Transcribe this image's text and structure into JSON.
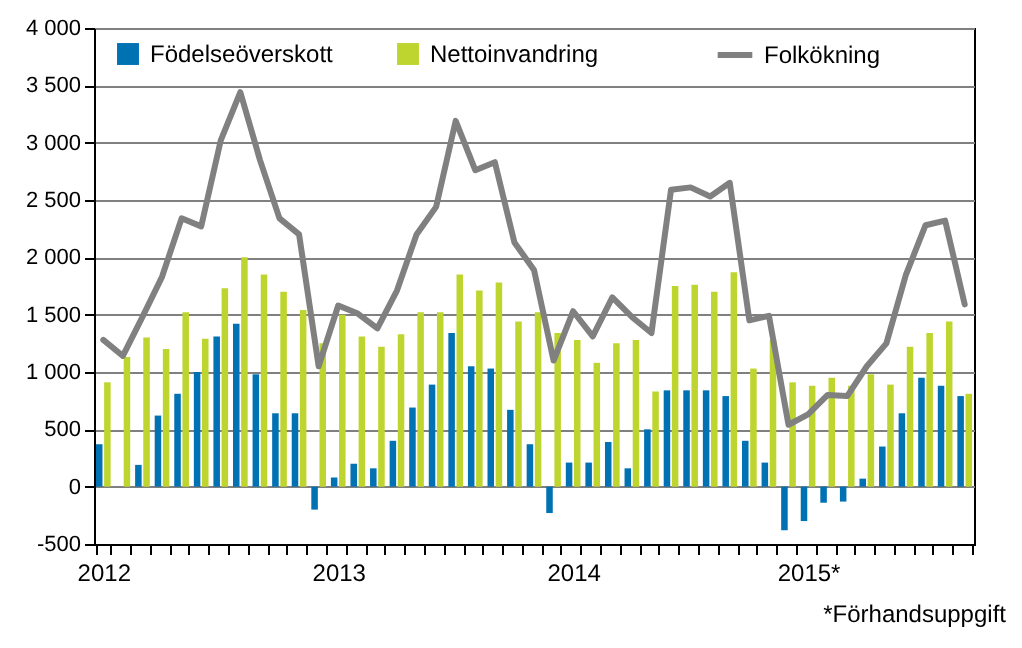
{
  "chart_data": {
    "type": "bar",
    "categories": [
      "2012",
      null,
      null,
      null,
      null,
      null,
      null,
      null,
      null,
      null,
      null,
      null,
      "2013",
      null,
      null,
      null,
      null,
      null,
      null,
      null,
      null,
      null,
      null,
      null,
      "2014",
      null,
      null,
      null,
      null,
      null,
      null,
      null,
      null,
      null,
      null,
      null,
      "2015*",
      null,
      null,
      null,
      null,
      null,
      null,
      null,
      null
    ],
    "series": [
      {
        "name": "Födelseöverskott",
        "color": "#0071b3",
        "values": [
          370,
          0,
          190,
          620,
          810,
          1000,
          1310,
          1420,
          980,
          640,
          640,
          -200,
          80,
          200,
          160,
          400,
          690,
          890,
          1340,
          1050,
          1030,
          670,
          370,
          -230,
          210,
          210,
          390,
          160,
          500,
          840,
          840,
          840,
          790,
          400,
          210,
          -380,
          -300,
          -140,
          -130,
          70,
          350,
          640,
          950,
          880,
          790
        ]
      },
      {
        "name": "Nettoinvandring",
        "color": "#bfd52f",
        "values": [
          910,
          1130,
          1300,
          1200,
          1520,
          1290,
          1730,
          2000,
          1850,
          1700,
          1540,
          1250,
          1500,
          1310,
          1220,
          1330,
          1520,
          1520,
          1850,
          1710,
          1780,
          1440,
          1520,
          1340,
          1280,
          1080,
          1250,
          1280,
          830,
          1750,
          1760,
          1700,
          1870,
          1030,
          1280,
          910,
          880,
          950,
          880,
          980,
          890,
          1220,
          1340,
          1440,
          810
        ]
      },
      {
        "name": "Folkökning",
        "type": "line",
        "color": "#808080",
        "values": [
          1280,
          1140,
          1480,
          1830,
          2340,
          2270,
          3020,
          3440,
          2850,
          2340,
          2200,
          1050,
          1580,
          1510,
          1380,
          1710,
          2200,
          2440,
          3190,
          2760,
          2830,
          2130,
          1890,
          1100,
          1530,
          1310,
          1650,
          1480,
          1340,
          2590,
          2610,
          2530,
          2650,
          1450,
          1490,
          540,
          630,
          800,
          790,
          1050,
          1250,
          1850,
          2280,
          2320,
          1590
        ]
      }
    ],
    "ylim": [
      -500,
      4000
    ],
    "yticks": [
      -500,
      0,
      500,
      {
        "value": 1000,
        "label": "1 000"
      },
      {
        "value": 1500,
        "label": "1 500"
      },
      {
        "value": 2000,
        "label": "2 000"
      },
      {
        "value": 2500,
        "label": "2 500"
      },
      {
        "value": 3000,
        "label": "3 000"
      },
      {
        "value": 3500,
        "label": "3 500"
      },
      {
        "value": 4000,
        "label": "4 000"
      }
    ],
    "grid": "y",
    "legend": "top left",
    "annotations": [
      "*Förhandsuppgift"
    ]
  }
}
